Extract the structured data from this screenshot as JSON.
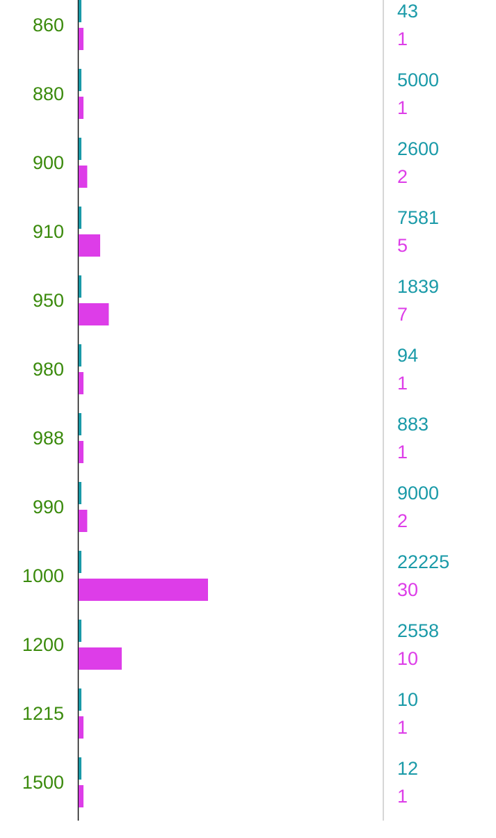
{
  "chart_data": {
    "type": "bar",
    "orientation": "horizontal",
    "categories": [
      "860",
      "880",
      "900",
      "910",
      "950",
      "980",
      "988",
      "990",
      "1000",
      "1200",
      "1215",
      "1500"
    ],
    "series": [
      {
        "values": [
          43,
          5000,
          2600,
          7581,
          1839,
          94,
          883,
          9000,
          22225,
          2558,
          10,
          12
        ]
      },
      {
        "values": [
          1,
          1,
          2,
          5,
          7,
          1,
          1,
          2,
          30,
          10,
          1,
          1
        ]
      }
    ],
    "colors": {
      "category_labels": "#3a8a0c",
      "series1": "#1a9aa8",
      "series2": "#dd3de8",
      "axis": "#111111",
      "divider": "#c8c8c8"
    },
    "grid": false
  }
}
